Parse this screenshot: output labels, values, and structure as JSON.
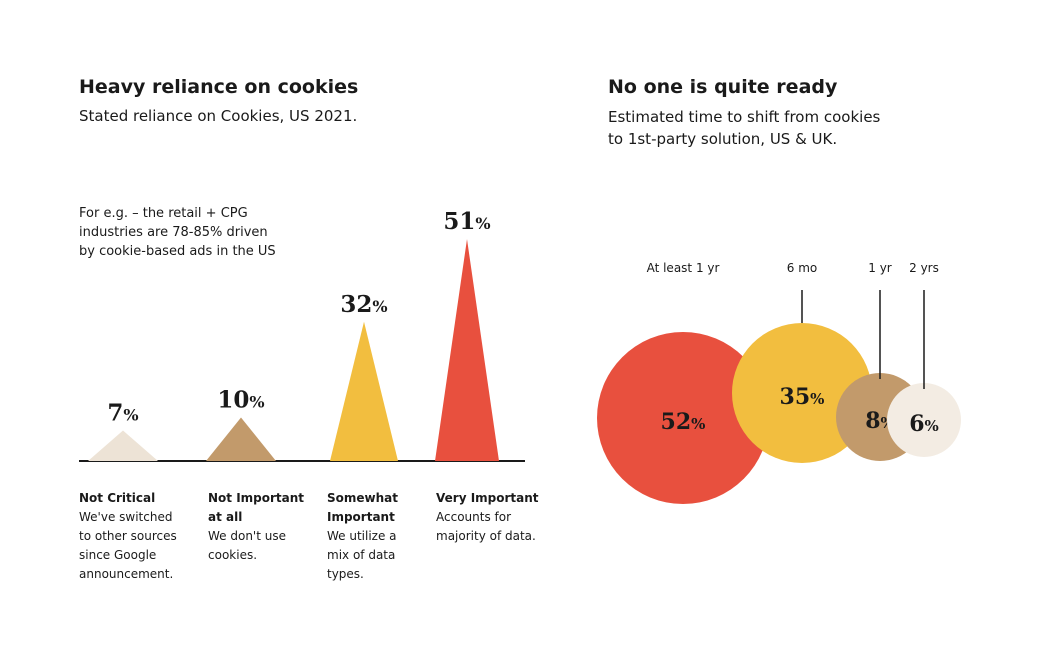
{
  "left": {
    "title": "Heavy reliance on cookies",
    "subtitle": "Stated reliance on Cookies, US 2021.",
    "note": "For e.g. – the retail + CPG\nindustries are 78-85% driven\nby cookie-based ads in the US",
    "colors": [
      "#ede3d6",
      "#c29a6b",
      "#f2be3f",
      "#e8503e"
    ]
  },
  "right": {
    "title": "No one is quite ready",
    "subtitle": "Estimated time to shift from cookies\nto 1st-party  solution, US & UK.",
    "colors": [
      "#e8503e",
      "#f2be3f",
      "#c29a6b",
      "#f3ece3"
    ]
  },
  "chart_data": [
    {
      "type": "bar",
      "title": "Heavy reliance on cookies",
      "subtitle": "Stated reliance on Cookies, US 2021.",
      "categories": [
        "Not Critical",
        "Not Important at all",
        "Somewhat Important",
        "Very Important"
      ],
      "descriptions": [
        "We've switched\nto other sources\nsince Google\nannouncement.",
        "We don't use\ncookies.",
        "We utilize a\nmix of data\ntypes.",
        "Accounts for\nmajority of data."
      ],
      "values": [
        7,
        10,
        32,
        51
      ],
      "unit": "%",
      "mark": "triangle"
    },
    {
      "type": "bubble",
      "title": "No one is quite ready",
      "subtitle": "Estimated time to shift from cookies to 1st-party  solution, US & UK.",
      "categories": [
        "At least 1 yr",
        "6 mo",
        "1 yr",
        "2 yrs"
      ],
      "values": [
        52,
        35,
        8,
        6
      ],
      "unit": "%"
    }
  ]
}
